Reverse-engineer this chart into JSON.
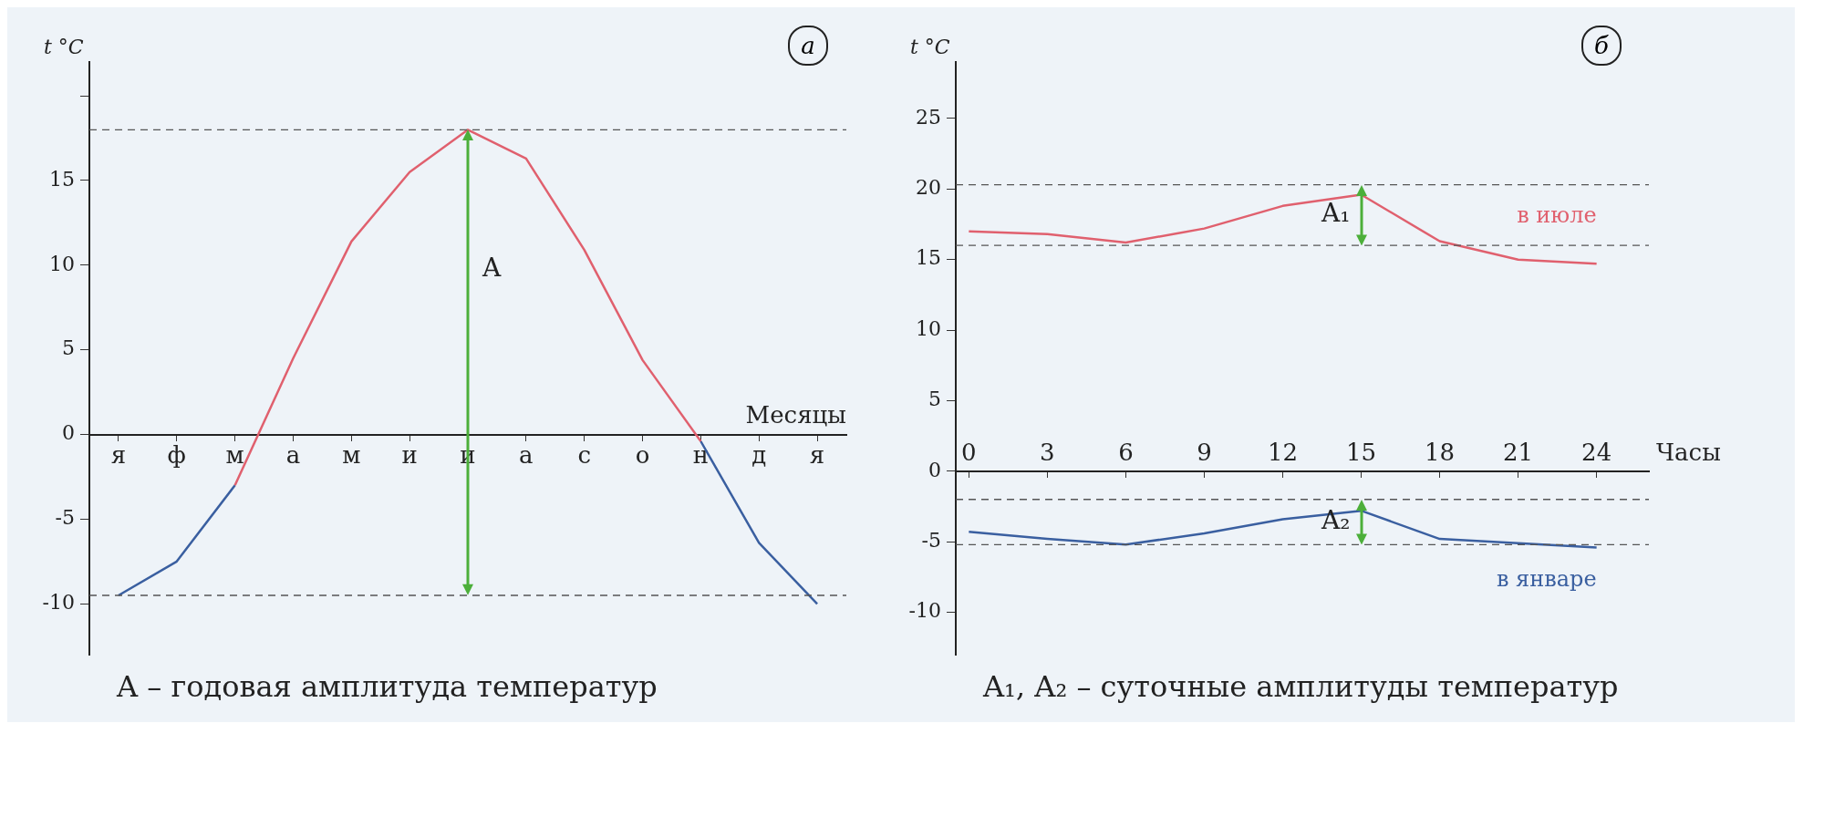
{
  "chart_data": [
    {
      "type": "line",
      "title": "а",
      "xlabel": "Месяцы",
      "ylabel": "t °C",
      "line_style": "solid",
      "marker": "none",
      "legend": false,
      "categories": [
        "я",
        "ф",
        "м",
        "а",
        "м",
        "и",
        "и",
        "а",
        "с",
        "о",
        "н",
        "д",
        "я"
      ],
      "ylim": [
        -13,
        22
      ],
      "yticks": [
        -10,
        -5,
        0,
        5,
        10,
        15,
        {
          "value": 20,
          "label": null
        }
      ],
      "series": [
        {
          "color": "#e0606e",
          "values": [
            null,
            null,
            -3,
            4.5,
            11.4,
            15.5,
            18,
            16.3,
            10.9,
            4.4,
            -0.4,
            null,
            null
          ]
        },
        {
          "color": "#3a5fa0",
          "values": [
            -9.5,
            -7.5,
            -3,
            null,
            null,
            null,
            null,
            null,
            null,
            null,
            -0.4,
            -6.4,
            -10
          ]
        }
      ],
      "ref_lines": [
        {
          "axis": "y",
          "value": 18,
          "color": "#555555",
          "line_style": "dashed"
        },
        {
          "axis": "y",
          "value": -9.5,
          "color": "#555555",
          "line_style": "dashed"
        }
      ],
      "annotations": [
        "A",
        "A – годовая амплитуда температур"
      ]
    },
    {
      "type": "line",
      "title": "б",
      "xlabel": "Часы",
      "ylabel": "t °C",
      "line_style": "solid",
      "marker": "none",
      "legend": false,
      "x": [
        0,
        3,
        6,
        9,
        12,
        15,
        18,
        21,
        24
      ],
      "xlim": [
        -0.5,
        26
      ],
      "xticks": [
        0,
        3,
        6,
        9,
        12,
        15,
        18,
        21,
        24
      ],
      "ylim": [
        -13,
        29
      ],
      "yticks": [
        -10,
        -5,
        0,
        5,
        10,
        15,
        20,
        25
      ],
      "series": [
        {
          "name": "в июле",
          "color": "#e0606e",
          "values": [
            17.0,
            16.8,
            16.2,
            17.2,
            18.8,
            19.6,
            16.3,
            15.0,
            14.7
          ]
        },
        {
          "name": "в январе",
          "color": "#3a5fa0",
          "values": [
            -4.3,
            -4.8,
            -5.2,
            -4.4,
            -3.4,
            -2.8,
            -4.8,
            -5.1,
            -5.4
          ]
        }
      ],
      "ref_lines": [
        {
          "axis": "y",
          "value": 20.3,
          "color": "#555555",
          "line_style": "dashed"
        },
        {
          "axis": "y",
          "value": 16,
          "color": "#555555",
          "line_style": "dashed"
        },
        {
          "axis": "y",
          "value": -2,
          "color": "#555555",
          "line_style": "dashed"
        },
        {
          "axis": "y",
          "value": -5.2,
          "color": "#555555",
          "line_style": "dashed"
        }
      ],
      "annotations": [
        "A₁",
        "A₂",
        "A₁, A₂ – суточные амплитуды температур"
      ]
    }
  ]
}
